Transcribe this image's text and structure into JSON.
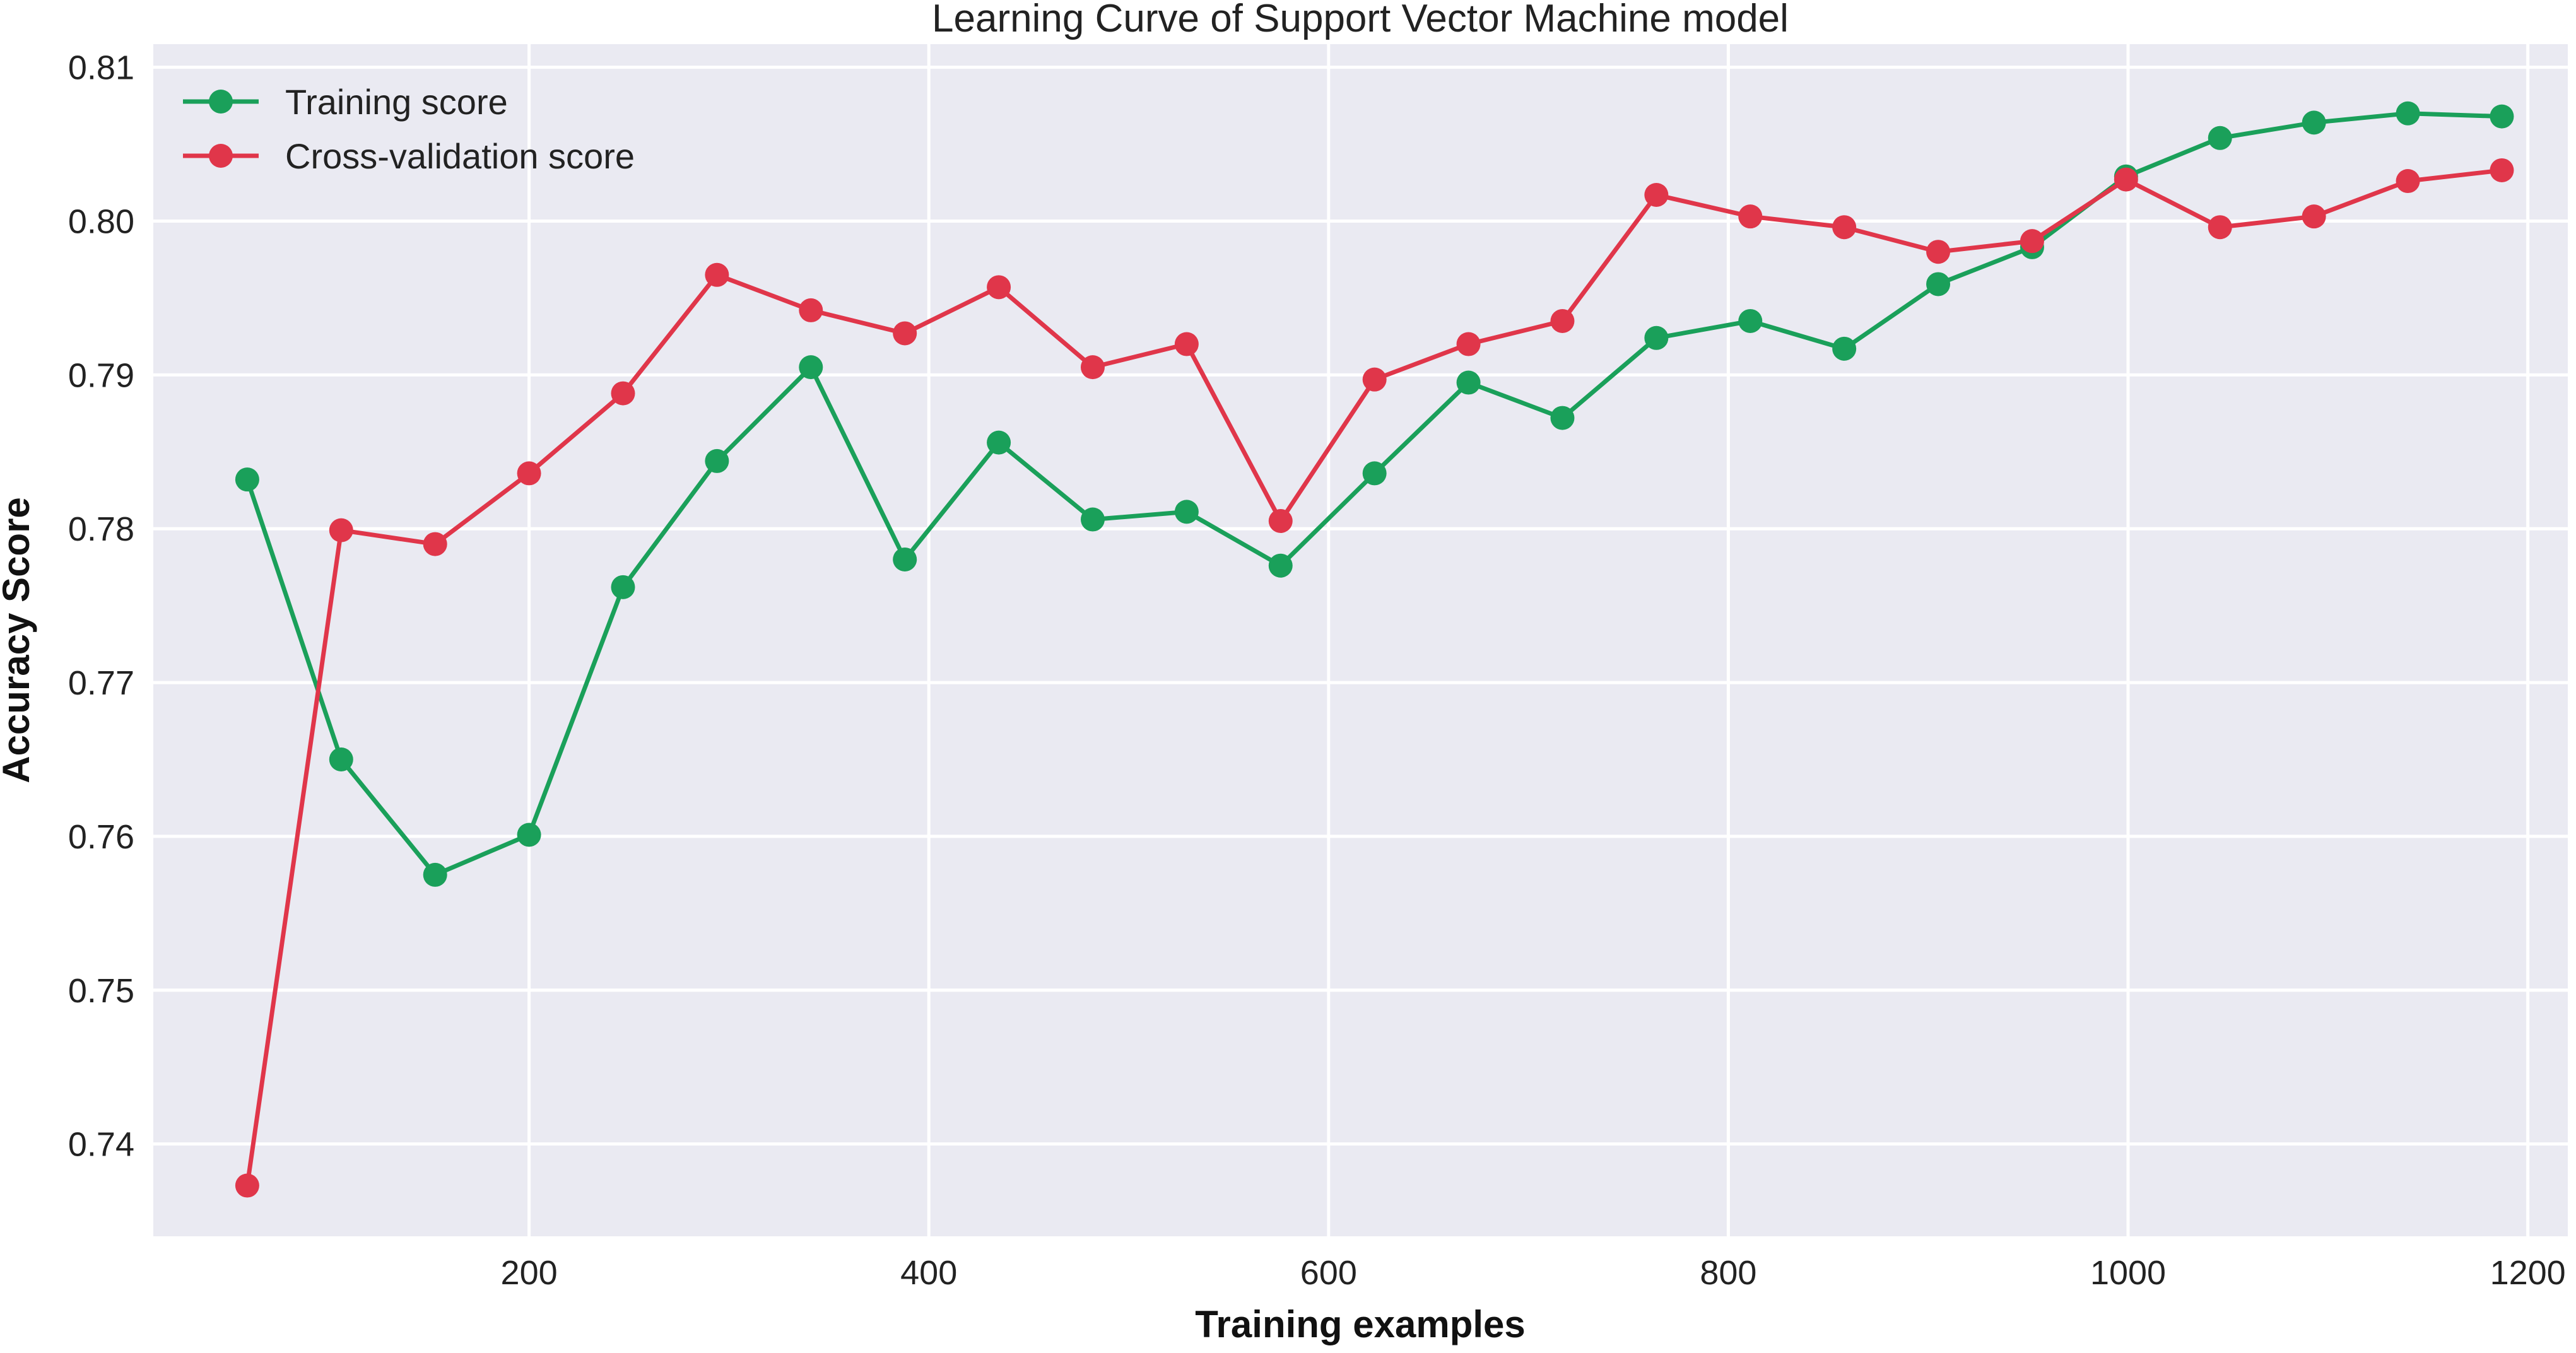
{
  "chart_data": {
    "type": "line",
    "title": "Learning Curve of Support Vector Machine model",
    "xlabel": "Training examples",
    "ylabel": "Accuracy Score",
    "xlim": [
      12,
      1220
    ],
    "ylim": [
      0.734,
      0.8115
    ],
    "xticks": [
      200,
      400,
      600,
      800,
      1000,
      1200
    ],
    "yticks": [
      0.74,
      0.75,
      0.76,
      0.77,
      0.78,
      0.79,
      0.8,
      0.81
    ],
    "ytick_labels": [
      "0.74",
      "0.75",
      "0.76",
      "0.77",
      "0.78",
      "0.79",
      "0.80",
      "0.81"
    ],
    "grid": true,
    "legend_position": "top-left",
    "x": [
      59,
      106,
      153,
      200,
      247,
      294,
      341,
      388,
      435,
      482,
      529,
      576,
      623,
      670,
      717,
      764,
      811,
      858,
      905,
      952,
      999,
      1046,
      1093,
      1140,
      1187
    ],
    "series": [
      {
        "name": "Training score",
        "color": "#1aa05a",
        "values": [
          0.7832,
          0.765,
          0.7575,
          0.7601,
          0.7762,
          0.7844,
          0.7905,
          0.778,
          0.7856,
          0.7806,
          0.7811,
          0.7776,
          0.7836,
          0.7895,
          0.7872,
          0.7924,
          0.7935,
          0.7917,
          0.7959,
          0.7983,
          0.8029,
          0.8054,
          0.8064,
          0.807,
          0.8068
        ]
      },
      {
        "name": "Cross-validation score",
        "color": "#e0364a",
        "values": [
          0.7373,
          0.7799,
          0.779,
          0.7836,
          0.7888,
          0.7965,
          0.7942,
          0.7927,
          0.7957,
          0.7905,
          0.792,
          0.7805,
          0.7897,
          0.792,
          0.7935,
          0.8017,
          0.8003,
          0.7996,
          0.798,
          0.7987,
          0.8027,
          0.7996,
          0.8003,
          0.8026,
          0.8033
        ]
      }
    ]
  }
}
